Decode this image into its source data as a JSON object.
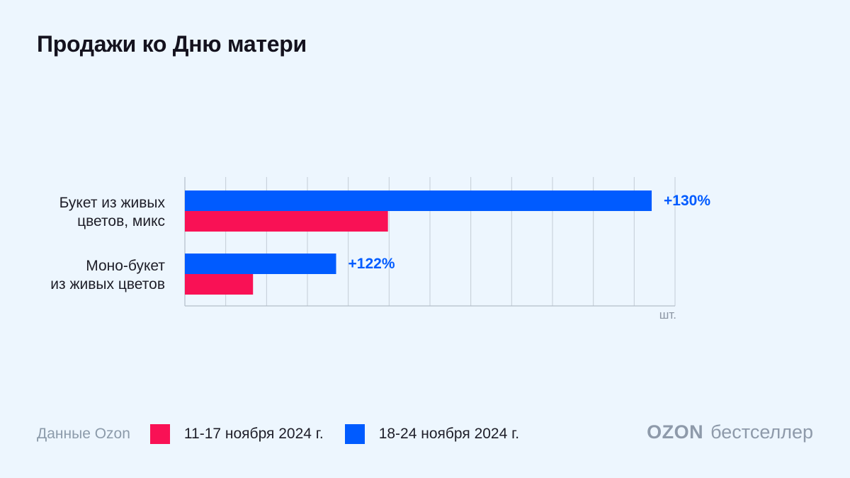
{
  "title": "Продажи ко Дню матери",
  "chart_data": {
    "type": "bar",
    "orientation": "horizontal",
    "categories": [
      [
        "Букет из живых",
        "цветов, микс"
      ],
      [
        "Моно-букет",
        "из живых цветов"
      ]
    ],
    "series": [
      {
        "name": "18-24 ноября 2024 г.",
        "color": "#005BFF",
        "values": [
          100,
          32.4
        ]
      },
      {
        "name": "11-17 ноября 2024 г.",
        "color": "#F91155",
        "values": [
          43.5,
          14.6
        ]
      }
    ],
    "annotations": [
      "+130%",
      "+122%"
    ],
    "xlim": [
      0,
      105
    ],
    "unit": "шт.",
    "grid": true,
    "tick_labels": false
  },
  "legend": [
    {
      "label": "11-17 ноября 2024 г.",
      "color": "#F91155"
    },
    {
      "label": "18-24 ноября 2024 г.",
      "color": "#005BFF"
    }
  ],
  "footer": {
    "source": "Данные Ozon"
  },
  "brand": {
    "logo": "OZON",
    "text": "бестселлер"
  }
}
